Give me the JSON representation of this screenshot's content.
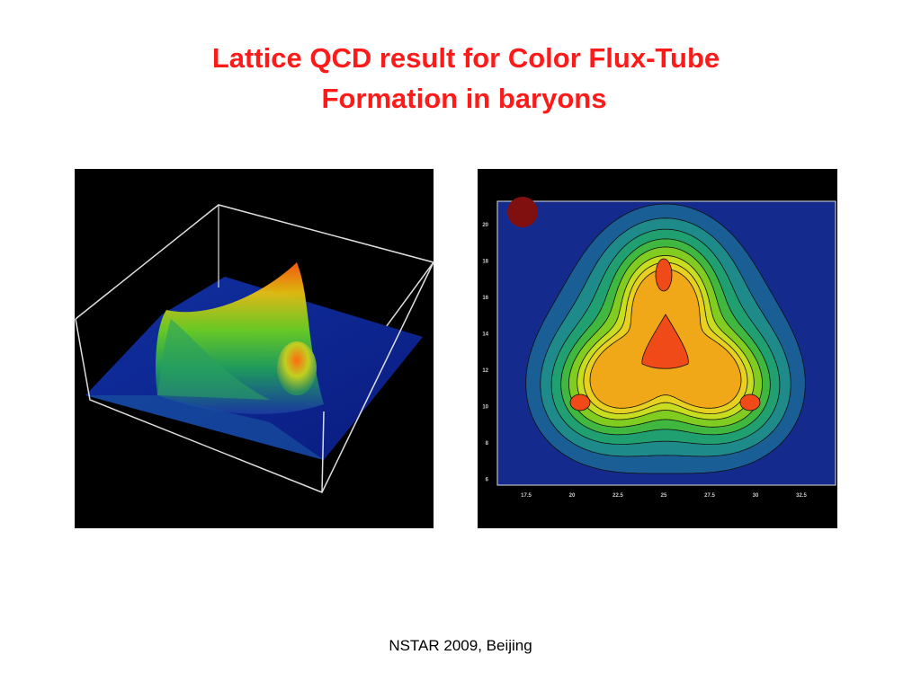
{
  "slide": {
    "title_lines": [
      "Lattice QCD result for Color Flux-Tube",
      "Formation in baryons"
    ],
    "contour_plot": {
      "y_tick_labels": [
        "20",
        "18",
        "16",
        "14",
        "12",
        "10",
        "8",
        "6"
      ],
      "x_tick_labels": [
        "17.5",
        "20",
        "22.5",
        "25",
        "27.5",
        "30",
        "32.5"
      ]
    },
    "footer": "NSTAR 2009, Beijing"
  }
}
